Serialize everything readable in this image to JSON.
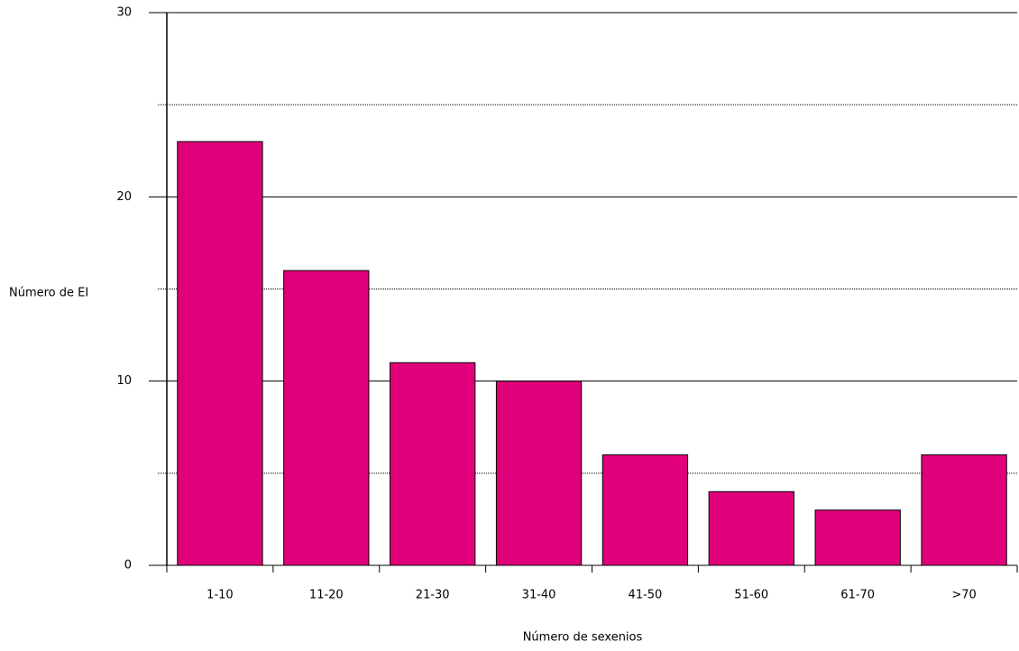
{
  "chart_data": {
    "type": "bar",
    "title": "",
    "xlabel": "Número de sexenios",
    "ylabel": "Número de EI",
    "categories": [
      "1-10",
      "11-20",
      "21-30",
      "31-40",
      "41-50",
      "51-60",
      "61-70",
      ">70"
    ],
    "values": [
      23,
      16,
      11,
      10,
      6,
      4,
      3,
      6
    ],
    "ylim": [
      0,
      30
    ],
    "yticks": [
      0,
      10,
      20,
      30
    ],
    "major_grid": true,
    "minor_grid": true,
    "legend": "none",
    "bar_color": "#e0007a"
  }
}
